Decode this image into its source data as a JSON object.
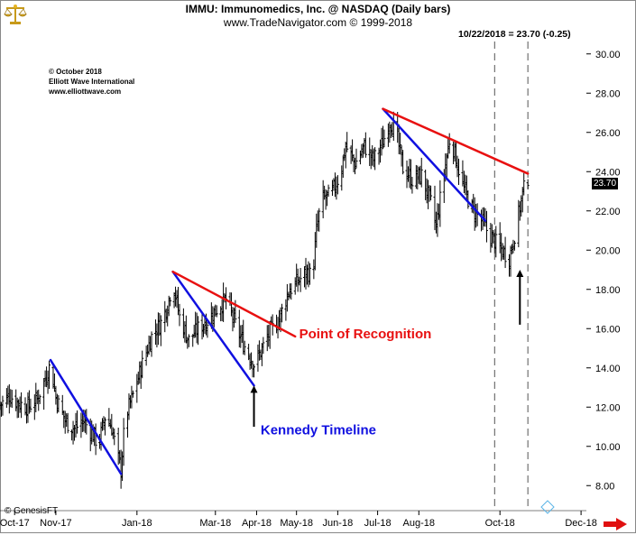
{
  "header": {
    "title": "IMMU:  Immunomedics, Inc. @ NASDAQ  (Daily bars)",
    "subtitle": "www.TradeNavigator.com © 1999-2018",
    "readout": "10/22/2018 = 23.70 (-0.25)",
    "last_price_label": "23.70"
  },
  "watermark": {
    "line1": "© October 2018",
    "line2": "Elliott Wave International",
    "line3": "www.elliottwave.com"
  },
  "footer": {
    "source": "© GenesisFT"
  },
  "icons": {
    "logo": "gold-scales-logo-icon",
    "nav": "right-arrow-icon",
    "marker": "e-marker-icon"
  },
  "colors": {
    "blue_line": "#1010e0",
    "red_line": "#e81010",
    "bars": "#000000"
  },
  "chart_data": {
    "type": "bar",
    "subtype": "ohlc-daily",
    "title": "IMMU:  Immunomedics, Inc. @ NASDAQ  (Daily bars)",
    "x_range": [
      "2017-09-20",
      "2018-12-05"
    ],
    "ylim": [
      7.0,
      31.0
    ],
    "y_ticks": [
      8,
      10,
      12,
      14,
      16,
      18,
      20,
      22,
      24,
      26,
      28,
      30
    ],
    "y_tick_labels": [
      "8.00",
      "10.00",
      "12.00",
      "14.00",
      "16.00",
      "18.00",
      "20.00",
      "22.00",
      "24.00",
      "26.00",
      "28.00",
      "30.00"
    ],
    "x_ticks": [
      {
        "date": "2017-10-01",
        "label": "Oct-17"
      },
      {
        "date": "2017-11-01",
        "label": "Nov-17"
      },
      {
        "date": "2018-01-01",
        "label": "Jan-18"
      },
      {
        "date": "2018-03-01",
        "label": "Mar-18"
      },
      {
        "date": "2018-04-01",
        "label": "Apr-18"
      },
      {
        "date": "2018-05-01",
        "label": "May-18"
      },
      {
        "date": "2018-06-01",
        "label": "Jun-18"
      },
      {
        "date": "2018-07-01",
        "label": "Jul-18"
      },
      {
        "date": "2018-08-01",
        "label": "Aug-18"
      },
      {
        "date": "2018-10-01",
        "label": "Oct-18"
      },
      {
        "date": "2018-12-01",
        "label": "Dec-18"
      }
    ],
    "grid": false,
    "close_path": [
      [
        "2017-09-20",
        12.1
      ],
      [
        "2017-09-27",
        12.6
      ],
      [
        "2017-10-04",
        12.2
      ],
      [
        "2017-10-11",
        12.0
      ],
      [
        "2017-10-18",
        12.4
      ],
      [
        "2017-10-25",
        13.6
      ],
      [
        "2017-10-28",
        14.2
      ],
      [
        "2017-11-01",
        12.5
      ],
      [
        "2017-11-08",
        11.3
      ],
      [
        "2017-11-15",
        10.9
      ],
      [
        "2017-11-22",
        11.3
      ],
      [
        "2017-11-29",
        10.6
      ],
      [
        "2017-12-03",
        10.1
      ],
      [
        "2017-12-08",
        11.5
      ],
      [
        "2017-12-13",
        11.0
      ],
      [
        "2017-12-17",
        9.6
      ],
      [
        "2017-12-20",
        8.8
      ],
      [
        "2017-12-23",
        11.4
      ],
      [
        "2017-12-29",
        12.6
      ],
      [
        "2018-01-05",
        14.2
      ],
      [
        "2018-01-12",
        15.6
      ],
      [
        "2018-01-19",
        16.3
      ],
      [
        "2018-01-24",
        17.2
      ],
      [
        "2018-01-28",
        18.4
      ],
      [
        "2018-02-02",
        16.6
      ],
      [
        "2018-02-09",
        15.4
      ],
      [
        "2018-02-16",
        16.0
      ],
      [
        "2018-02-23",
        16.4
      ],
      [
        "2018-03-02",
        17.0
      ],
      [
        "2018-03-09",
        17.5
      ],
      [
        "2018-03-16",
        16.2
      ],
      [
        "2018-03-23",
        15.1
      ],
      [
        "2018-03-30",
        14.2
      ],
      [
        "2018-04-04",
        14.8
      ],
      [
        "2018-04-11",
        15.8
      ],
      [
        "2018-04-18",
        16.5
      ],
      [
        "2018-04-25",
        17.9
      ],
      [
        "2018-05-02",
        18.4
      ],
      [
        "2018-05-09",
        18.9
      ],
      [
        "2018-05-13",
        18.6
      ],
      [
        "2018-05-16",
        21.0
      ],
      [
        "2018-05-20",
        22.6
      ],
      [
        "2018-05-27",
        22.8
      ],
      [
        "2018-06-03",
        23.9
      ],
      [
        "2018-06-07",
        25.3
      ],
      [
        "2018-06-14",
        24.4
      ],
      [
        "2018-06-21",
        25.3
      ],
      [
        "2018-06-28",
        24.6
      ],
      [
        "2018-07-05",
        25.5
      ],
      [
        "2018-07-10",
        26.6
      ],
      [
        "2018-07-15",
        26.0
      ],
      [
        "2018-07-20",
        24.2
      ],
      [
        "2018-07-27",
        23.6
      ],
      [
        "2018-08-03",
        23.8
      ],
      [
        "2018-08-10",
        22.4
      ],
      [
        "2018-08-14",
        21.2
      ],
      [
        "2018-08-19",
        23.5
      ],
      [
        "2018-08-24",
        25.6
      ],
      [
        "2018-08-27",
        25.2
      ],
      [
        "2018-09-03",
        23.3
      ],
      [
        "2018-09-10",
        22.1
      ],
      [
        "2018-09-17",
        21.5
      ],
      [
        "2018-09-24",
        20.7
      ],
      [
        "2018-10-01",
        20.1
      ],
      [
        "2018-10-08",
        19.6
      ],
      [
        "2018-10-13",
        21.1
      ],
      [
        "2018-10-18",
        22.9
      ],
      [
        "2018-10-22",
        23.7
      ]
    ],
    "trendlines": [
      {
        "color": "blue",
        "from": [
          "2017-10-28",
          14.4
        ],
        "to": [
          "2017-12-20",
          8.6
        ]
      },
      {
        "color": "blue",
        "from": [
          "2018-01-28",
          18.9
        ],
        "to": [
          "2018-03-30",
          13.1
        ]
      },
      {
        "color": "blue",
        "from": [
          "2018-07-05",
          27.2
        ],
        "to": [
          "2018-09-20",
          21.5
        ]
      },
      {
        "color": "red",
        "from": [
          "2018-01-28",
          18.9
        ],
        "to": [
          "2018-04-30",
          15.6
        ]
      },
      {
        "color": "red",
        "from": [
          "2018-07-05",
          27.2
        ],
        "to": [
          "2018-10-22",
          23.9
        ]
      }
    ],
    "vertical_markers": [
      "2018-09-27",
      "2018-10-22"
    ],
    "arrows": [
      {
        "date": "2018-03-30",
        "from": 11.0,
        "to": 13.1
      },
      {
        "date": "2018-10-16",
        "from": 16.2,
        "to": 19.0
      }
    ],
    "annotations": [
      {
        "text": "Point of Recognition",
        "color": "red",
        "date": "2018-05-03",
        "y": 15.5
      },
      {
        "text": "Kennedy Timeline",
        "color": "blue",
        "date": "2018-04-04",
        "y": 10.6
      }
    ]
  }
}
